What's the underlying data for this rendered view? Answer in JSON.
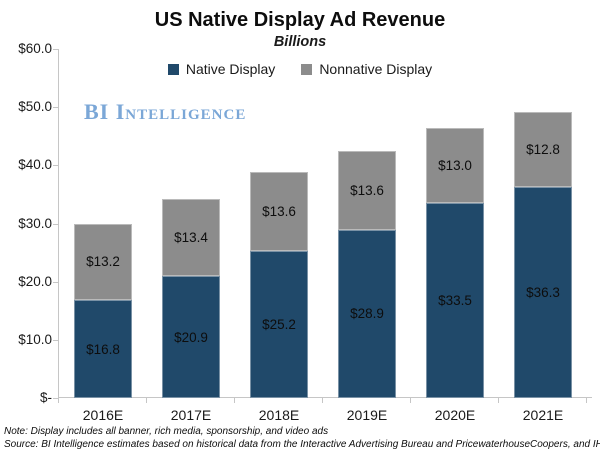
{
  "watermark": "BI Intelligence",
  "chart_data": {
    "type": "bar",
    "stacked": true,
    "title": "US Native Display Ad Revenue",
    "subtitle": "Billions",
    "categories": [
      "2016E",
      "2017E",
      "2018E",
      "2019E",
      "2020E",
      "2021E"
    ],
    "series": [
      {
        "name": "Native Display",
        "color": "#20496A",
        "values": [
          16.8,
          20.9,
          25.2,
          28.9,
          33.5,
          36.3
        ],
        "labels": [
          "$16.8",
          "$20.9",
          "$25.2",
          "$28.9",
          "$33.5",
          "$36.3"
        ]
      },
      {
        "name": "Nonnative Display",
        "color": "#8C8C8C",
        "values": [
          13.2,
          13.4,
          13.6,
          13.6,
          13.0,
          12.8
        ],
        "labels": [
          "$13.2",
          "$13.4",
          "$13.6",
          "$13.6",
          "$13.0",
          "$12.8"
        ]
      }
    ],
    "y_axis": {
      "min": 0,
      "max": 60,
      "tick_labels": [
        "$60.0",
        "$50.0",
        "$40.0",
        "$30.0",
        "$20.0",
        "$10.0",
        "$-"
      ]
    },
    "legend_position": "top",
    "grid": false
  },
  "footnotes": {
    "note": "Note: Display includes all banner, rich media, sponsorship, and video ads",
    "source": "Source: BI Intelligence estimates based on historical data from the Interactive Advertising Bureau and PricewaterhouseCoopers, and IHS"
  },
  "colors": {
    "native_display": "#20496A",
    "nonnative_display": "#8C8C8C",
    "watermark": "#7BA7D7",
    "axis": "#C6C6C6"
  }
}
